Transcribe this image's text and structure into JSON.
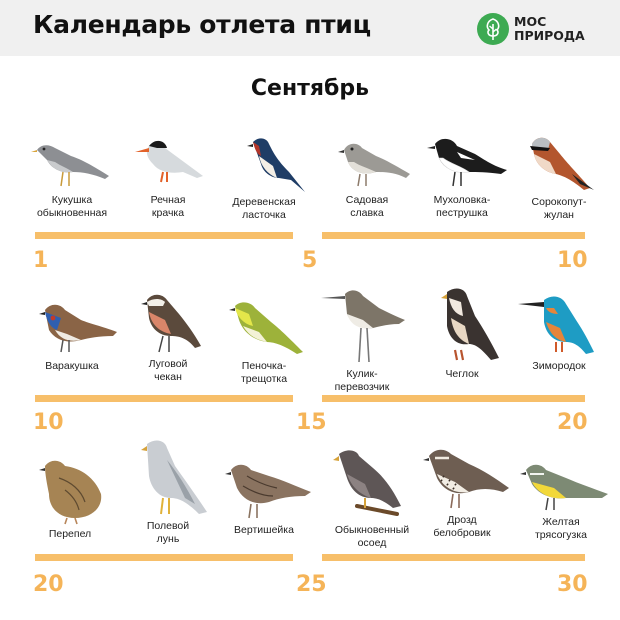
{
  "header": {
    "title": "Календарь отлета птиц",
    "logo_line1": "МОС",
    "logo_line2": "ПРИРОДА",
    "logo_color": "#3daa52"
  },
  "month": "Сентябрь",
  "accent_color": "#f7bf6a",
  "number_color": "#f5b458",
  "rows": [
    {
      "birds": [
        "Кукушка\nобыкновенная",
        "Речная\nкрачка",
        "Деревенская\nласточка",
        "Садовая\nславка",
        "Мухоловка-\nпеструшка",
        "Сорокопут-\nжулан"
      ],
      "numbers": [
        "1",
        "5",
        "10"
      ]
    },
    {
      "birds": [
        "Варакушка",
        "Луговой\nчекан",
        "Пеночка-\nтрещотка",
        "Кулик-\nперевозчик",
        "Чеглок",
        "Зимородок"
      ],
      "numbers": [
        "10",
        "15",
        "20"
      ]
    },
    {
      "birds": [
        "Перепел",
        "Полевой\nлунь",
        "Вертишейка",
        "Обыкновенный\nосоед",
        "Дрозд\nбелобровик",
        "Желтая\nтрясогузка"
      ],
      "numbers": [
        "20",
        "25",
        "30"
      ]
    }
  ]
}
